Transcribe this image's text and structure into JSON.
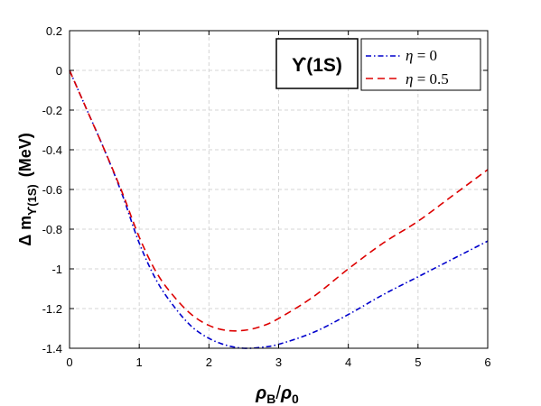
{
  "chart_data": {
    "type": "line",
    "x_label": {
      "main": "ρ",
      "sub_b": "B",
      "slash": "/",
      "rho0": "ρ",
      "sub_0": "0"
    },
    "y_label": {
      "prefix": "Δ m",
      "sub": "ϒ(1S)",
      "unit": "(MeV)"
    },
    "annotation": "ϒ(1S)",
    "xlim": [
      0,
      6
    ],
    "ylim": [
      -1.4,
      0.2
    ],
    "x_ticks": [
      0,
      1,
      2,
      3,
      4,
      5,
      6
    ],
    "y_ticks": [
      0.2,
      0,
      -0.2,
      -0.4,
      -0.6,
      -0.8,
      -1,
      -1.2,
      -1.4
    ],
    "x_tick_labels": [
      "0",
      "1",
      "2",
      "3",
      "4",
      "5",
      "6"
    ],
    "y_tick_labels": [
      "0.2",
      "0",
      "-0.2",
      "-0.4",
      "-0.6",
      "-0.8",
      "-1",
      "-1.2",
      "-1.4"
    ],
    "grid": true,
    "legend_position": "top-right",
    "series": [
      {
        "name": "η = 0",
        "legend_symbol": "η",
        "legend_value": " = 0",
        "color": "#0000cc",
        "dash": "6,3,1.5,3",
        "x": [
          0,
          0.25,
          0.5,
          0.75,
          1.0,
          1.25,
          1.5,
          1.75,
          2.0,
          2.25,
          2.5,
          2.75,
          3.0,
          3.5,
          4.0,
          4.5,
          5.0,
          5.5,
          6.0
        ],
        "y": [
          0.0,
          -0.2,
          -0.4,
          -0.62,
          -0.87,
          -1.06,
          -1.19,
          -1.29,
          -1.35,
          -1.385,
          -1.4,
          -1.395,
          -1.38,
          -1.32,
          -1.23,
          -1.13,
          -1.04,
          -0.95,
          -0.86
        ]
      },
      {
        "name": "η = 0.5",
        "legend_symbol": "η",
        "legend_value": " = 0.5",
        "color": "#dd0000",
        "dash": "8,5",
        "x": [
          0,
          0.25,
          0.5,
          0.75,
          1.0,
          1.25,
          1.5,
          1.75,
          2.0,
          2.25,
          2.5,
          2.75,
          3.0,
          3.5,
          4.0,
          4.5,
          5.0,
          5.5,
          6.0
        ],
        "y": [
          0.0,
          -0.2,
          -0.4,
          -0.61,
          -0.84,
          -1.02,
          -1.14,
          -1.23,
          -1.285,
          -1.31,
          -1.31,
          -1.29,
          -1.25,
          -1.14,
          -1.0,
          -0.87,
          -0.76,
          -0.63,
          -0.5
        ]
      }
    ]
  }
}
